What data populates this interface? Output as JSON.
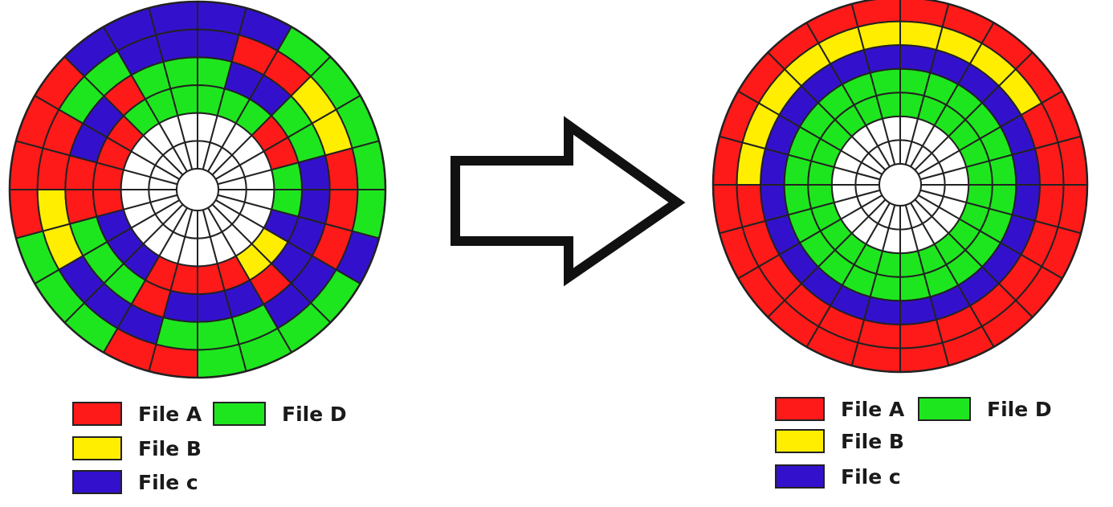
{
  "colors": {
    "file_a": "#ff1a1a",
    "file_b": "#ffee00",
    "file_c": "#3311cc",
    "file_d": "#1ee61e",
    "empty": "#ffffff",
    "grid": "#222222",
    "arrow": "#111111"
  },
  "diagram": {
    "left_disk": {
      "title": "",
      "rings_outer_to_inner": [
        [
          "c",
          "c",
          "d",
          "d",
          "d",
          "d",
          "d",
          "c",
          "d",
          "d",
          "d",
          "d",
          "a",
          "a",
          "d",
          "d",
          "d",
          "a",
          "a",
          "a",
          "a",
          "c",
          "c",
          "c"
        ],
        [
          "c",
          "a",
          "a",
          "b",
          "b",
          "a",
          "a",
          "a",
          "c",
          "c",
          "d",
          "d",
          "d",
          "c",
          "c",
          "c",
          "b",
          "b",
          "a",
          "a",
          "d",
          "d",
          "c",
          "c"
        ],
        [
          "d",
          "c",
          "c",
          "d",
          "d",
          "c",
          "c",
          "c",
          "c",
          "a",
          "c",
          "c",
          "c",
          "a",
          "d",
          "d",
          "d",
          "a",
          "a",
          "c",
          "c",
          "a",
          "d",
          "d"
        ],
        [
          "d",
          "d",
          "d",
          "a",
          "a",
          "d",
          "d",
          "c",
          "b",
          "b",
          "a",
          "a",
          "a",
          "a",
          "c",
          "c",
          "c",
          "a",
          "a",
          "a",
          "a",
          "d",
          "d",
          "d"
        ],
        [
          "",
          "",
          "",
          "",
          "",
          "",
          "",
          "",
          "",
          "",
          "",
          "",
          "",
          "",
          "",
          "",
          "",
          "",
          "",
          "",
          "",
          "",
          "",
          ""
        ],
        [
          "",
          "",
          "",
          "",
          "",
          "",
          "",
          "",
          "",
          "",
          "",
          "",
          "",
          "",
          "",
          "",
          "",
          "",
          "",
          "",
          "",
          "",
          "",
          ""
        ]
      ]
    },
    "right_disk": {
      "title": "",
      "rings_outer_to_inner": [
        [
          "a",
          "a",
          "a",
          "a",
          "a",
          "a",
          "a",
          "a",
          "a",
          "a",
          "a",
          "a",
          "a",
          "a",
          "a",
          "a",
          "a",
          "a",
          "a",
          "a",
          "a",
          "a",
          "a",
          "a"
        ],
        [
          "b",
          "b",
          "b",
          "b",
          "a",
          "a",
          "a",
          "a",
          "a",
          "a",
          "a",
          "a",
          "a",
          "a",
          "a",
          "a",
          "a",
          "a",
          "b",
          "b",
          "b",
          "b",
          "b",
          "b"
        ],
        [
          "c",
          "c",
          "c",
          "c",
          "c",
          "c",
          "c",
          "c",
          "c",
          "c",
          "c",
          "c",
          "c",
          "c",
          "c",
          "c",
          "c",
          "c",
          "c",
          "c",
          "c",
          "c",
          "c",
          "c"
        ],
        [
          "d",
          "d",
          "d",
          "d",
          "d",
          "d",
          "d",
          "d",
          "d",
          "d",
          "d",
          "d",
          "d",
          "d",
          "d",
          "d",
          "d",
          "d",
          "d",
          "d",
          "d",
          "d",
          "d",
          "d"
        ],
        [
          "d",
          "d",
          "d",
          "d",
          "d",
          "d",
          "d",
          "d",
          "d",
          "d",
          "d",
          "d",
          "d",
          "d",
          "d",
          "d",
          "d",
          "d",
          "d",
          "d",
          "d",
          "d",
          "d",
          "d"
        ],
        [
          "",
          "",
          "",
          "",
          "",
          "",
          "",
          "",
          "",
          "",
          "",
          "",
          "",
          "",
          "",
          "",
          "",
          "",
          "",
          "",
          "",
          "",
          "",
          ""
        ],
        [
          "",
          "",
          "",
          "",
          "",
          "",
          "",
          "",
          "",
          "",
          "",
          "",
          "",
          "",
          "",
          "",
          "",
          "",
          "",
          "",
          "",
          "",
          "",
          ""
        ]
      ]
    }
  },
  "legend_left": {
    "file_a": "File A",
    "file_b": "File B",
    "file_c": "File c",
    "file_d": "File D"
  },
  "legend_right": {
    "file_a": "File A",
    "file_b": "File B",
    "file_c": "File c",
    "file_d": "File D"
  }
}
